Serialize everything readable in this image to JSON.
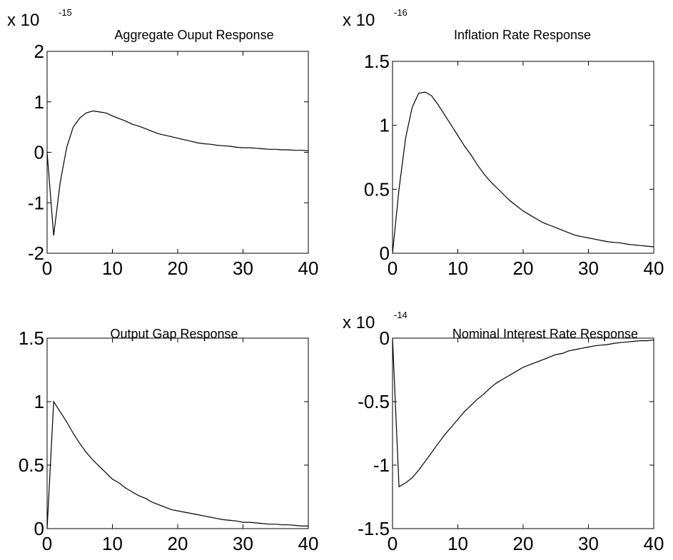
{
  "figure": {
    "background": "#ffffff",
    "line_color": "#000000"
  },
  "chart_data": [
    {
      "type": "line",
      "title": "Aggregate Ouput Response",
      "xlabel": "",
      "ylabel": "",
      "multiplier": {
        "base": "x 10",
        "exponent": "-15"
      },
      "xlim": [
        0,
        40
      ],
      "ylim": [
        -2,
        2
      ],
      "xticks": [
        0,
        10,
        20,
        30,
        40
      ],
      "xtick_labels": [
        "0",
        "10",
        "20",
        "30",
        "40"
      ],
      "yticks": [
        -2,
        -1,
        0,
        1,
        2
      ],
      "ytick_labels": [
        "-2",
        "-1",
        "0",
        "1",
        "2"
      ],
      "grid": false,
      "series": [
        {
          "x": [
            0,
            1,
            2,
            3,
            4,
            5,
            6,
            7,
            8,
            9,
            10,
            11,
            12,
            13,
            14,
            15,
            16,
            17,
            18,
            19,
            20,
            21,
            22,
            23,
            24,
            25,
            26,
            27,
            28,
            29,
            30,
            31,
            32,
            33,
            34,
            35,
            36,
            37,
            38,
            39,
            40
          ],
          "values": [
            0,
            -1.65,
            -0.6,
            0.1,
            0.5,
            0.68,
            0.78,
            0.82,
            0.8,
            0.78,
            0.72,
            0.67,
            0.62,
            0.56,
            0.52,
            0.47,
            0.42,
            0.37,
            0.34,
            0.31,
            0.28,
            0.25,
            0.22,
            0.19,
            0.17,
            0.16,
            0.14,
            0.13,
            0.12,
            0.1,
            0.09,
            0.09,
            0.08,
            0.07,
            0.06,
            0.06,
            0.05,
            0.05,
            0.04,
            0.04,
            0.03
          ]
        }
      ]
    },
    {
      "type": "line",
      "title": "Inflation Rate Response",
      "xlabel": "",
      "ylabel": "",
      "multiplier": {
        "base": "x 10",
        "exponent": "-16"
      },
      "xlim": [
        0,
        40
      ],
      "ylim": [
        0,
        1.5
      ],
      "xticks": [
        0,
        10,
        20,
        30,
        40
      ],
      "xtick_labels": [
        "0",
        "10",
        "20",
        "30",
        "40"
      ],
      "yticks": [
        0,
        0.5,
        1,
        1.5
      ],
      "ytick_labels": [
        "0",
        "0.5",
        "1",
        "1.5"
      ],
      "grid": false,
      "series": [
        {
          "x": [
            0,
            1,
            2,
            3,
            4,
            5,
            6,
            7,
            8,
            9,
            10,
            11,
            12,
            13,
            14,
            15,
            16,
            17,
            18,
            19,
            20,
            21,
            22,
            23,
            24,
            25,
            26,
            27,
            28,
            29,
            30,
            31,
            32,
            33,
            34,
            35,
            36,
            37,
            38,
            39,
            40
          ],
          "values": [
            0,
            0.5,
            0.9,
            1.14,
            1.25,
            1.26,
            1.23,
            1.16,
            1.08,
            1.0,
            0.92,
            0.84,
            0.77,
            0.69,
            0.62,
            0.56,
            0.51,
            0.46,
            0.41,
            0.37,
            0.33,
            0.3,
            0.27,
            0.24,
            0.22,
            0.2,
            0.18,
            0.16,
            0.14,
            0.13,
            0.12,
            0.11,
            0.1,
            0.09,
            0.085,
            0.08,
            0.07,
            0.065,
            0.06,
            0.055,
            0.05
          ]
        }
      ]
    },
    {
      "type": "line",
      "title": "Output Gap Response",
      "xlabel": "",
      "ylabel": "",
      "multiplier": {
        "base": "",
        "exponent": ""
      },
      "xlim": [
        0,
        40
      ],
      "ylim": [
        0,
        1.5
      ],
      "xticks": [
        0,
        10,
        20,
        30,
        40
      ],
      "xtick_labels": [
        "0",
        "10",
        "20",
        "30",
        "40"
      ],
      "yticks": [
        0,
        0.5,
        1,
        1.5
      ],
      "ytick_labels": [
        "0",
        "0.5",
        "1",
        "1.5"
      ],
      "grid": false,
      "series": [
        {
          "x": [
            0,
            1,
            2,
            3,
            4,
            5,
            6,
            7,
            8,
            9,
            10,
            11,
            12,
            13,
            14,
            15,
            16,
            17,
            18,
            19,
            20,
            21,
            22,
            23,
            24,
            25,
            26,
            27,
            28,
            29,
            30,
            31,
            32,
            33,
            34,
            35,
            36,
            37,
            38,
            39,
            40
          ],
          "values": [
            0,
            1.0,
            0.92,
            0.84,
            0.75,
            0.67,
            0.6,
            0.54,
            0.49,
            0.44,
            0.39,
            0.36,
            0.32,
            0.29,
            0.26,
            0.24,
            0.21,
            0.19,
            0.17,
            0.15,
            0.14,
            0.13,
            0.12,
            0.11,
            0.1,
            0.09,
            0.08,
            0.07,
            0.065,
            0.06,
            0.05,
            0.05,
            0.045,
            0.04,
            0.035,
            0.035,
            0.03,
            0.03,
            0.025,
            0.02,
            0.02
          ]
        }
      ]
    },
    {
      "type": "line",
      "title": "Nominal Interest Rate Response",
      "xlabel": "",
      "ylabel": "",
      "multiplier": {
        "base": "x 10",
        "exponent": "-14"
      },
      "xlim": [
        0,
        40
      ],
      "ylim": [
        -1.5,
        0
      ],
      "xticks": [
        0,
        10,
        20,
        30,
        40
      ],
      "xtick_labels": [
        "0",
        "10",
        "20",
        "30",
        "40"
      ],
      "yticks": [
        -1.5,
        -1,
        -0.5,
        0
      ],
      "ytick_labels": [
        "-1.5",
        "-1",
        "-0.5",
        "0"
      ],
      "grid": false,
      "series": [
        {
          "x": [
            0,
            1,
            2,
            3,
            4,
            5,
            6,
            7,
            8,
            9,
            10,
            11,
            12,
            13,
            14,
            15,
            16,
            17,
            18,
            19,
            20,
            21,
            22,
            23,
            24,
            25,
            26,
            27,
            28,
            29,
            30,
            31,
            32,
            33,
            34,
            35,
            36,
            37,
            38,
            39,
            40
          ],
          "values": [
            0,
            -1.17,
            -1.14,
            -1.1,
            -1.04,
            -0.97,
            -0.9,
            -0.83,
            -0.76,
            -0.7,
            -0.64,
            -0.58,
            -0.53,
            -0.48,
            -0.44,
            -0.39,
            -0.35,
            -0.32,
            -0.29,
            -0.26,
            -0.23,
            -0.21,
            -0.19,
            -0.17,
            -0.15,
            -0.13,
            -0.12,
            -0.1,
            -0.09,
            -0.08,
            -0.07,
            -0.06,
            -0.055,
            -0.05,
            -0.04,
            -0.035,
            -0.03,
            -0.025,
            -0.02,
            -0.02,
            -0.015
          ]
        }
      ]
    }
  ]
}
